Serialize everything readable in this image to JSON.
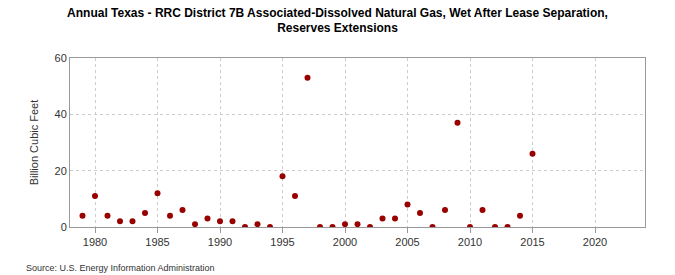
{
  "chart_data": {
    "type": "scatter",
    "title": "Annual Texas - RRC District 7B Associated-Dissolved Natural Gas, Wet After Lease Separation,\nReserves Extensions",
    "y_label": "Billion Cubic Feet",
    "source": "Source: U.S. Energy Information Administration",
    "x": [
      1979,
      1980,
      1981,
      1982,
      1983,
      1984,
      1985,
      1986,
      1987,
      1988,
      1989,
      1990,
      1991,
      1992,
      1993,
      1994,
      1995,
      1996,
      1997,
      1998,
      1999,
      2000,
      2001,
      2002,
      2003,
      2004,
      2005,
      2006,
      2007,
      2008,
      2009,
      2010,
      2011,
      2012,
      2013,
      2014,
      2015
    ],
    "values": [
      4,
      11,
      4,
      2,
      2,
      5,
      12,
      4,
      6,
      1,
      3,
      2,
      2,
      0,
      1,
      0,
      18,
      11,
      53,
      0,
      0,
      1,
      1,
      0,
      3,
      3,
      8,
      5,
      0,
      6,
      37,
      0,
      6,
      0,
      0,
      4,
      26
    ],
    "color": "#990000",
    "marker": "circle",
    "xlim": [
      1978,
      2024
    ],
    "xticks": [
      1980,
      1985,
      1990,
      1995,
      2000,
      2005,
      2010,
      2015,
      2020
    ],
    "ylim": [
      0,
      60
    ],
    "yticks": [
      0,
      20,
      40,
      60
    ],
    "grid": true
  }
}
